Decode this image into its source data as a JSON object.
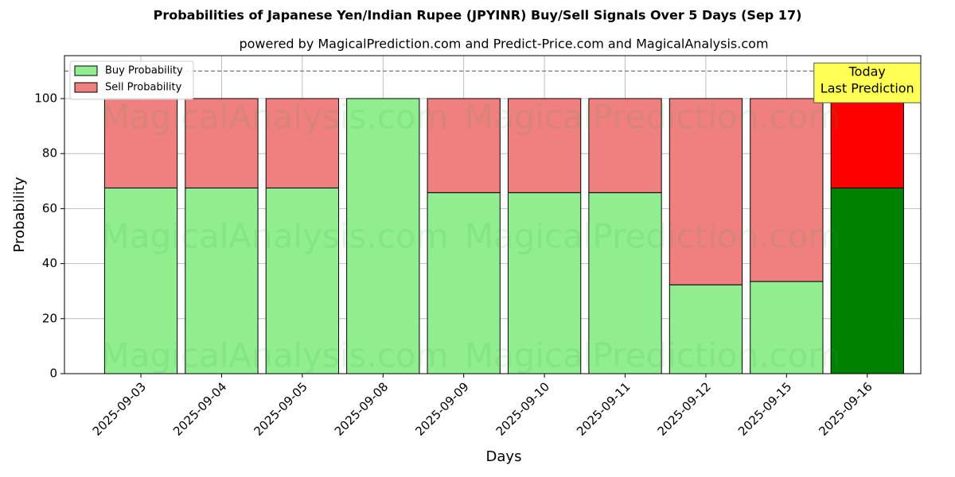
{
  "chart_data": {
    "type": "stacked_bar",
    "title": "Probabilities of Japanese Yen/Indian Rupee (JPYINR) Buy/Sell Signals Over 5 Days (Sep 17)",
    "subtitle": "powered by MagicalPrediction.com and Predict-Price.com and MagicalAnalysis.com",
    "xlabel": "Days",
    "ylabel": "Probability",
    "categories": [
      "2025-09-03",
      "2025-09-04",
      "2025-09-05",
      "2025-09-08",
      "2025-09-09",
      "2025-09-10",
      "2025-09-11",
      "2025-09-12",
      "2025-09-15",
      "2025-09-16"
    ],
    "series": [
      {
        "name": "Buy Probability",
        "color": "#90ee90",
        "highlight_color": "#008000",
        "values": [
          67.5,
          67.5,
          67.5,
          100,
          65.8,
          65.8,
          65.8,
          32.3,
          33.5,
          67.5
        ]
      },
      {
        "name": "Sell Probability",
        "color": "#f08080",
        "highlight_color": "#ff0000",
        "values": [
          32.5,
          32.5,
          32.5,
          0,
          34.2,
          34.2,
          34.2,
          67.7,
          66.5,
          32.5
        ]
      }
    ],
    "highlight_index": 9,
    "ylim": [
      0,
      115.6
    ],
    "yticks": [
      0,
      20,
      40,
      60,
      80,
      100
    ],
    "hline": 110,
    "grid": true,
    "legend": "upper left",
    "annotation": {
      "lines": [
        "Today",
        "Last Prediction"
      ],
      "y": 106
    },
    "watermarks": [
      "MagicalAnalysis.com",
      "MagicalPrediction.com"
    ]
  }
}
